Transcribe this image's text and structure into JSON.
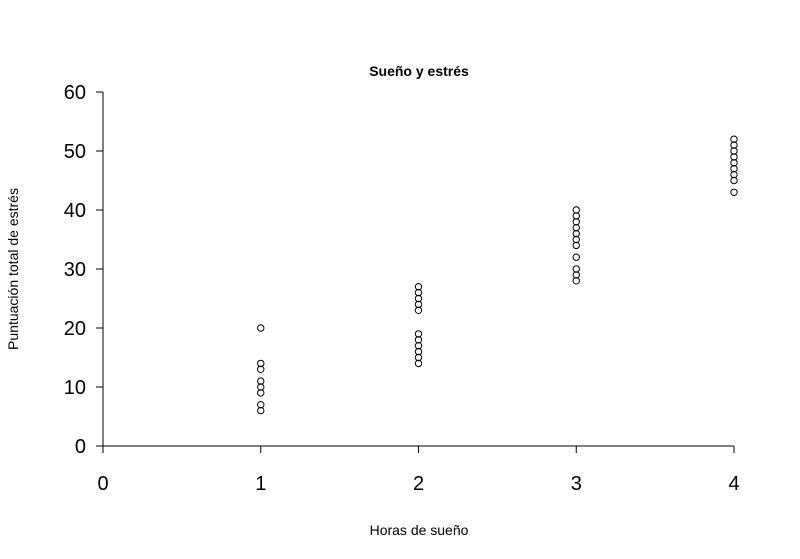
{
  "chart_data": {
    "type": "scatter",
    "title": "Sueño y estrés",
    "xlabel": "Horas de sueño",
    "ylabel": "Puntuación total de estrés",
    "xlim": [
      0,
      4
    ],
    "ylim": [
      0,
      60
    ],
    "xticks": [
      0,
      1,
      2,
      3,
      4
    ],
    "yticks": [
      0,
      10,
      20,
      30,
      40,
      50,
      60
    ],
    "grid": false,
    "points": [
      {
        "x": 1,
        "y": 20
      },
      {
        "x": 1,
        "y": 14
      },
      {
        "x": 1,
        "y": 13
      },
      {
        "x": 1,
        "y": 11
      },
      {
        "x": 1,
        "y": 10
      },
      {
        "x": 1,
        "y": 9
      },
      {
        "x": 1,
        "y": 7
      },
      {
        "x": 1,
        "y": 6
      },
      {
        "x": 2,
        "y": 27
      },
      {
        "x": 2,
        "y": 26
      },
      {
        "x": 2,
        "y": 25
      },
      {
        "x": 2,
        "y": 24
      },
      {
        "x": 2,
        "y": 23
      },
      {
        "x": 2,
        "y": 19
      },
      {
        "x": 2,
        "y": 18
      },
      {
        "x": 2,
        "y": 17
      },
      {
        "x": 2,
        "y": 16
      },
      {
        "x": 2,
        "y": 15
      },
      {
        "x": 2,
        "y": 14
      },
      {
        "x": 3,
        "y": 40
      },
      {
        "x": 3,
        "y": 39
      },
      {
        "x": 3,
        "y": 38
      },
      {
        "x": 3,
        "y": 37
      },
      {
        "x": 3,
        "y": 36
      },
      {
        "x": 3,
        "y": 35
      },
      {
        "x": 3,
        "y": 34
      },
      {
        "x": 3,
        "y": 32
      },
      {
        "x": 3,
        "y": 30
      },
      {
        "x": 3,
        "y": 29
      },
      {
        "x": 3,
        "y": 28
      },
      {
        "x": 4,
        "y": 52
      },
      {
        "x": 4,
        "y": 51
      },
      {
        "x": 4,
        "y": 50
      },
      {
        "x": 4,
        "y": 49
      },
      {
        "x": 4,
        "y": 48
      },
      {
        "x": 4,
        "y": 47
      },
      {
        "x": 4,
        "y": 46
      },
      {
        "x": 4,
        "y": 45
      },
      {
        "x": 4,
        "y": 43
      }
    ]
  }
}
